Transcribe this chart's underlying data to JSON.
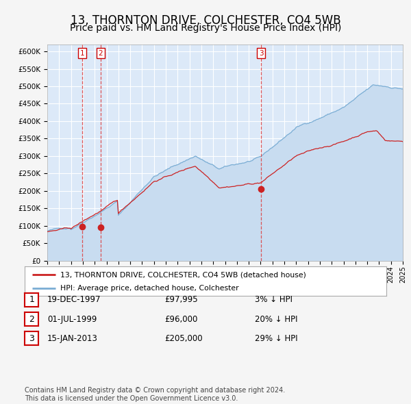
{
  "title": "13, THORNTON DRIVE, COLCHESTER, CO4 5WB",
  "subtitle": "Price paid vs. HM Land Registry's House Price Index (HPI)",
  "title_fontsize": 12,
  "subtitle_fontsize": 10,
  "x_start_year": 1995,
  "x_end_year": 2025,
  "y_min": 0,
  "y_max": 620000,
  "y_ticks": [
    0,
    50000,
    100000,
    150000,
    200000,
    250000,
    300000,
    350000,
    400000,
    450000,
    500000,
    550000,
    600000
  ],
  "y_tick_labels": [
    "£0",
    "£50K",
    "£100K",
    "£150K",
    "£200K",
    "£250K",
    "£300K",
    "£350K",
    "£400K",
    "£450K",
    "£500K",
    "£550K",
    "£600K"
  ],
  "fig_bg_color": "#f5f5f5",
  "plot_bg_color": "#dce9f8",
  "grid_color": "#ffffff",
  "hpi_line_color": "#7aadd4",
  "hpi_fill_color": "#c8dcf0",
  "price_line_color": "#cc2222",
  "vline_color": "#dd4444",
  "sale_marker_color": "#cc2222",
  "sale_1_date": 1997.97,
  "sale_1_price": 97995,
  "sale_2_date": 1999.5,
  "sale_2_price": 96000,
  "sale_3_date": 2013.04,
  "sale_3_price": 205000,
  "table_rows": [
    [
      "1",
      "19-DEC-1997",
      "£97,995",
      "3% ↓ HPI"
    ],
    [
      "2",
      "01-JUL-1999",
      "£96,000",
      "20% ↓ HPI"
    ],
    [
      "3",
      "15-JAN-2013",
      "£205,000",
      "29% ↓ HPI"
    ]
  ],
  "legend_line1": "13, THORNTON DRIVE, COLCHESTER, CO4 5WB (detached house)",
  "legend_line2": "HPI: Average price, detached house, Colchester",
  "footer": "Contains HM Land Registry data © Crown copyright and database right 2024.\nThis data is licensed under the Open Government Licence v3.0."
}
